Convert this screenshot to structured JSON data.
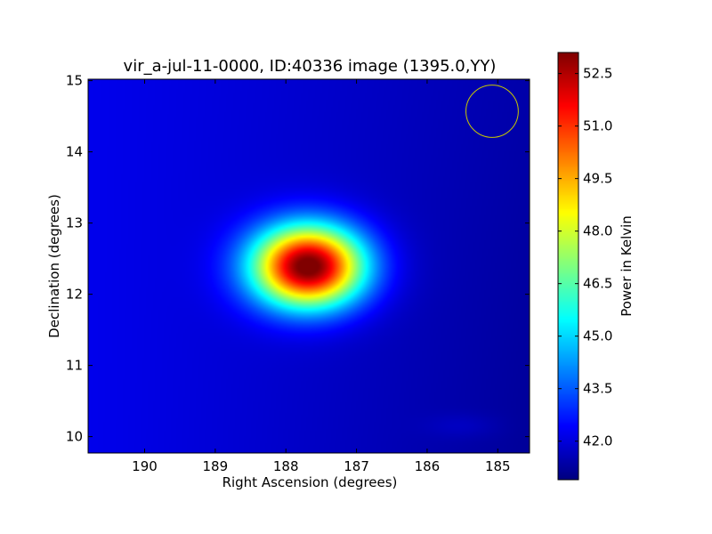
{
  "chart_data": {
    "type": "heatmap",
    "title": "vir_a-jul-11-0000, ID:40336 image (1395.0,YY)",
    "xlabel": "Right Ascension (degrees)",
    "ylabel": "Declination (degrees)",
    "xlim": [
      190.8,
      184.55
    ],
    "ylim": [
      9.77,
      15.02
    ],
    "x_ticks": [
      190,
      189,
      188,
      187,
      186,
      185
    ],
    "x_tick_labels": [
      "190",
      "189",
      "188",
      "187",
      "186",
      "185"
    ],
    "y_ticks": [
      10,
      11,
      12,
      13,
      14,
      15
    ],
    "y_tick_labels": [
      "10",
      "11",
      "12",
      "13",
      "14",
      "15"
    ],
    "colormap": "jet",
    "colorbar": {
      "label": "Power in Kelvin",
      "range": [
        40.9,
        53.1
      ],
      "ticks": [
        42.0,
        43.5,
        45.0,
        46.5,
        48.0,
        49.5,
        51.0,
        52.5
      ],
      "tick_labels": [
        "42.0",
        "43.5",
        "45.0",
        "46.5",
        "48.0",
        "49.5",
        "51.0",
        "52.5"
      ]
    },
    "background": {
      "max": 42.2,
      "min": 41.2,
      "gradient": "higher toward left (east), lower toward right (west)"
    },
    "sources": [
      {
        "name": "",
        "ra": 187.68,
        "dec": 12.39,
        "peak": 52.9,
        "sigma_ra": 0.55,
        "sigma_dec": 0.4
      },
      {
        "name": "",
        "ra": 185.5,
        "dec": 10.15,
        "peak": 41.75,
        "sigma_ra": 0.35,
        "sigma_dec": 0.12
      }
    ],
    "beam_circle": {
      "ra": 185.08,
      "dec": 14.57,
      "radius_deg": 0.37,
      "color": "#c8c800"
    },
    "grid": false,
    "legend": "none"
  }
}
